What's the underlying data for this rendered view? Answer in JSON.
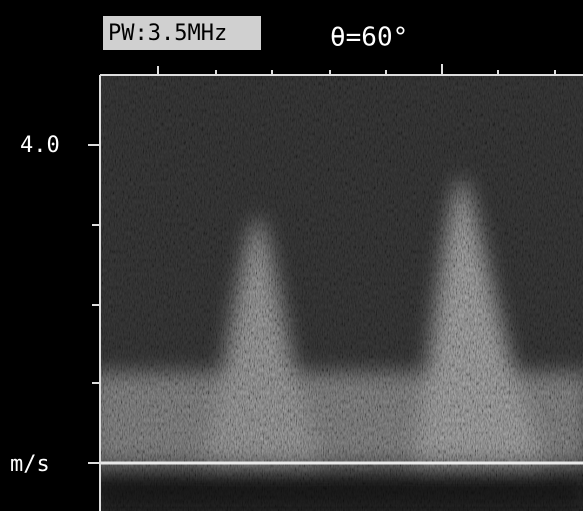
{
  "header": {
    "mode": "PW:3.5MHz",
    "angle": "θ=60°"
  },
  "scale": {
    "top_label": "4.0",
    "unit_label": "m/s"
  }
}
